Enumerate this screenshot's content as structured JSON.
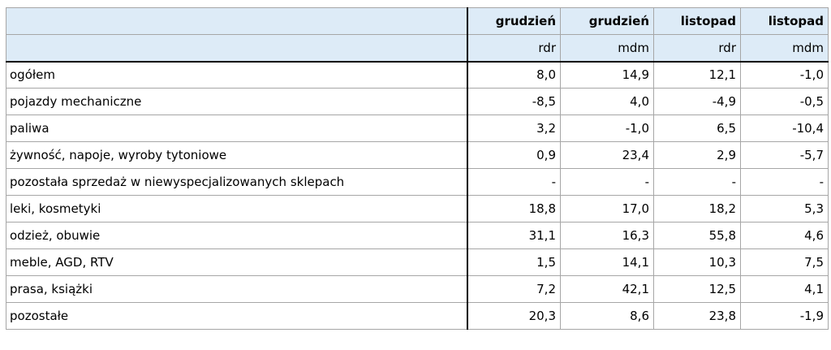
{
  "header": {
    "months": [
      "grudzień",
      "grudzień",
      "listopad",
      "listopad"
    ],
    "measures": [
      "rdr",
      "mdm",
      "rdr",
      "mdm"
    ]
  },
  "rows": [
    {
      "label": "ogółem",
      "values": [
        "8,0",
        "14,9",
        "12,1",
        "-1,0"
      ]
    },
    {
      "label": "pojazdy mechaniczne",
      "values": [
        "-8,5",
        "4,0",
        "-4,9",
        "-0,5"
      ]
    },
    {
      "label": "paliwa",
      "values": [
        "3,2",
        "-1,0",
        "6,5",
        "-10,4"
      ]
    },
    {
      "label": "żywność, napoje, wyroby tytoniowe",
      "values": [
        "0,9",
        "23,4",
        "2,9",
        "-5,7"
      ]
    },
    {
      "label": "pozostała sprzedaż w niewyspecjalizowanych sklepach",
      "values": [
        "-",
        "-",
        "-",
        "-"
      ]
    },
    {
      "label": "leki, kosmetyki",
      "values": [
        "18,8",
        "17,0",
        "18,2",
        "5,3"
      ]
    },
    {
      "label": "odzież, obuwie",
      "values": [
        "31,1",
        "16,3",
        "55,8",
        "4,6"
      ]
    },
    {
      "label": "meble, AGD, RTV",
      "values": [
        "1,5",
        "14,1",
        "10,3",
        "7,5"
      ]
    },
    {
      "label": "prasa, książki",
      "values": [
        "7,2",
        "42,1",
        "12,5",
        "4,1"
      ]
    },
    {
      "label": "pozostałe",
      "values": [
        "20,3",
        "8,6",
        "23,8",
        "-1,9"
      ]
    }
  ]
}
